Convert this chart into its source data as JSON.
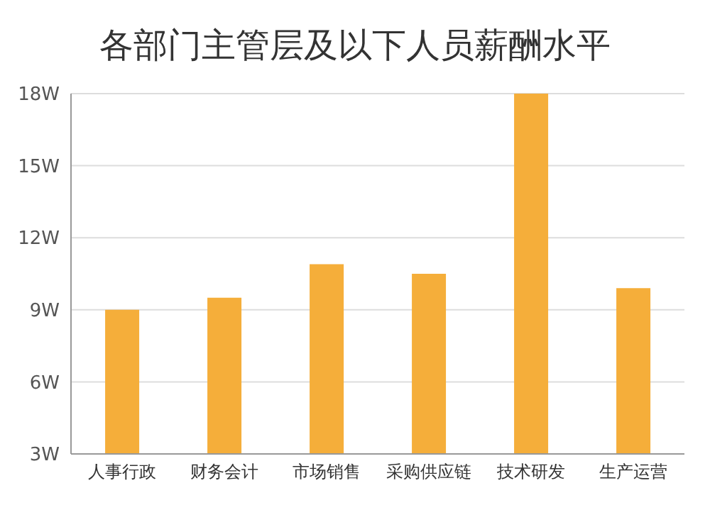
{
  "chart_data": {
    "type": "bar",
    "title": "各部门主管层及以下人员薪酬水平",
    "categories": [
      "人事行政",
      "财务会计",
      "市场销售",
      "采购供应链",
      "技术研发",
      "生产运营"
    ],
    "values": [
      9.0,
      9.5,
      10.9,
      10.5,
      18.0,
      9.9
    ],
    "color": "#f5ae3a",
    "ylim": [
      3,
      18
    ],
    "yticks": [
      {
        "value": 3,
        "label": "3W"
      },
      {
        "value": 6,
        "label": "6W"
      },
      {
        "value": 9,
        "label": "9W"
      },
      {
        "value": 12,
        "label": "12W"
      },
      {
        "value": 15,
        "label": "15W"
      },
      {
        "value": 18,
        "label": "18W"
      }
    ],
    "grid": "y"
  }
}
